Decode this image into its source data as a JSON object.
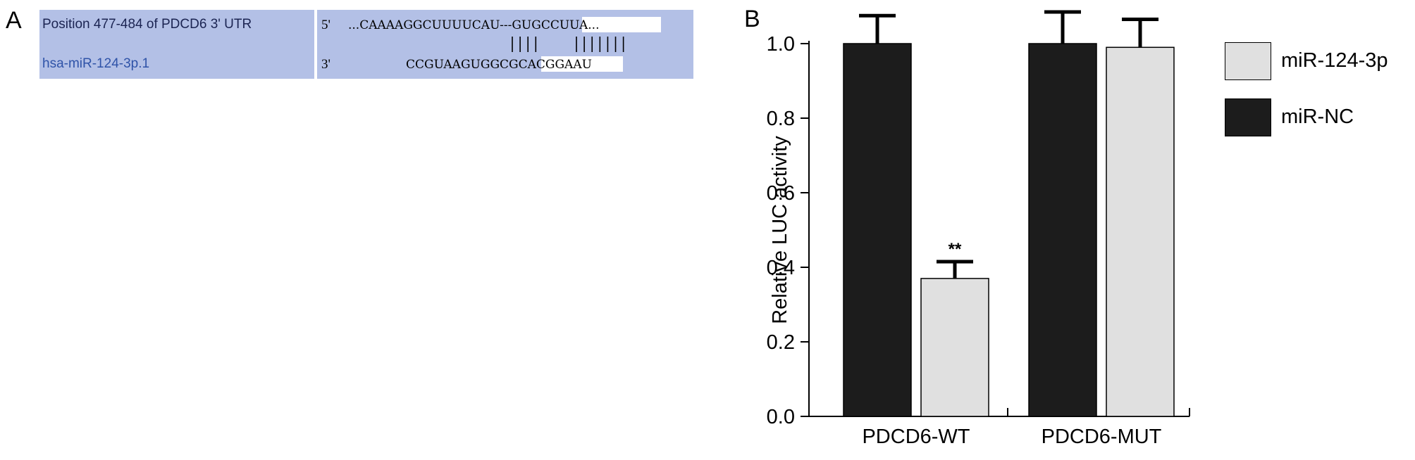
{
  "panel_a": {
    "letter": "A",
    "utr_label": "Position 477-484 of PDCD6 3' UTR",
    "mirna_label": "hsa-miR-124-3p.1",
    "utr_end": "5'",
    "mirna_end": "3'",
    "utr_sequence": "...CAAAAGGCUUUUCAU---GUGCCUUA...",
    "mirna_sequence": "CCGUAAGUGGCGCACGGAAU",
    "pairing": "|||| |||||||"
  },
  "panel_b": {
    "letter": "B",
    "colors": {
      "miR-124-3p": "#e0e0e0",
      "miR-NC": "#1c1c1c"
    }
  },
  "chart_data": {
    "type": "bar",
    "ylabel": "Relative LUC activity",
    "xlabel": "",
    "ylim": [
      0,
      1.0
    ],
    "yticks": [
      "0.0",
      "0.2",
      "0.4",
      "0.6",
      "0.8",
      "1.0"
    ],
    "categories": [
      "PDCD6-WT",
      "PDCD6-MUT"
    ],
    "series": [
      {
        "name": "miR-NC",
        "values": [
          1.0,
          1.0
        ],
        "errors": [
          0.075,
          0.085
        ]
      },
      {
        "name": "miR-124-3p",
        "values": [
          0.37,
          0.99
        ],
        "errors": [
          0.045,
          0.075
        ]
      }
    ],
    "annotations": [
      {
        "category": "PDCD6-WT",
        "series": "miR-124-3p",
        "text": "**"
      }
    ],
    "legend": {
      "position": "right",
      "order": [
        "miR-124-3p",
        "miR-NC"
      ]
    }
  }
}
